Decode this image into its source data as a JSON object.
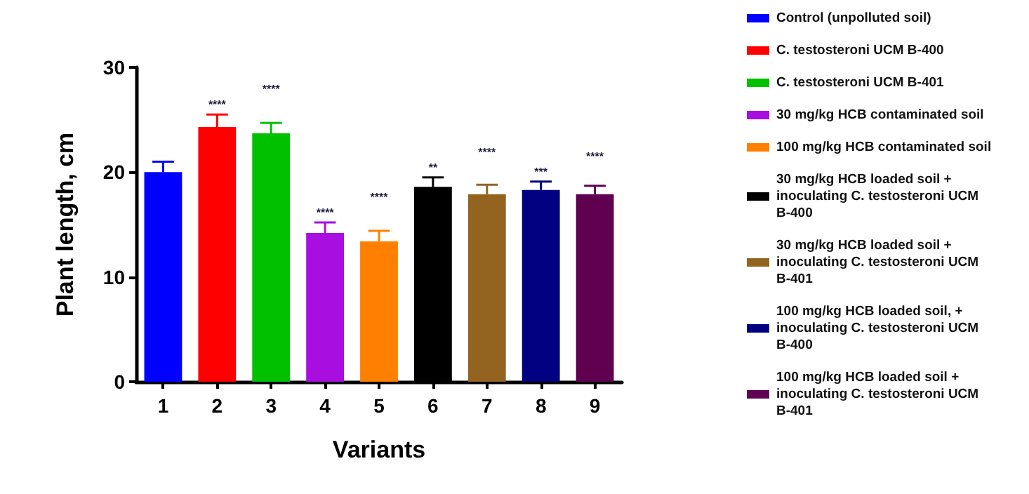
{
  "chart_data": {
    "type": "bar",
    "xlabel": "Variants",
    "ylabel": "Plant length, cm",
    "categories": [
      "1",
      "2",
      "3",
      "4",
      "5",
      "6",
      "7",
      "8",
      "9"
    ],
    "series": [
      {
        "name": "Control (unpolluted soil)",
        "color": "#0000ff",
        "values": [
          20.0,
          null,
          null,
          null,
          null,
          null,
          null,
          null,
          null
        ],
        "errors": [
          [
            20.0,
            21.0
          ],
          null,
          null,
          null,
          null,
          null,
          null,
          null,
          null
        ]
      },
      {
        "name": "C. testosteroni UCM B-400",
        "color": "#ff0000",
        "values": [
          null,
          24.3,
          null,
          null,
          null,
          null,
          null,
          null,
          null
        ],
        "errors": [
          null,
          [
            24.3,
            25.5
          ],
          null,
          null,
          null,
          null,
          null,
          null,
          null
        ]
      },
      {
        "name": "C. testosteroni UCM B-401",
        "color": "#00c000",
        "values": [
          null,
          null,
          23.7,
          null,
          null,
          null,
          null,
          null,
          null
        ],
        "errors": [
          null,
          null,
          [
            23.7,
            24.7
          ],
          null,
          null,
          null,
          null,
          null,
          null
        ]
      },
      {
        "name": "30 mg/kg HCB contaminated soil",
        "color": "#a80ee0",
        "values": [
          null,
          null,
          null,
          14.2,
          null,
          null,
          null,
          null,
          null
        ],
        "errors": [
          null,
          null,
          null,
          [
            14.2,
            15.2
          ],
          null,
          null,
          null,
          null,
          null
        ]
      },
      {
        "name": "100 mg/kg HCB contaminated soil",
        "color": "#ff8000",
        "values": [
          null,
          null,
          null,
          null,
          13.4,
          null,
          null,
          null,
          null
        ],
        "errors": [
          null,
          null,
          null,
          null,
          [
            13.4,
            14.4
          ],
          null,
          null,
          null,
          null
        ]
      },
      {
        "name": "30 mg/kg HCB loaded soil + inoculating C. testosteroni UCM B-400",
        "color": "#000000",
        "values": [
          null,
          null,
          null,
          null,
          null,
          18.6,
          null,
          null,
          null
        ],
        "errors": [
          null,
          null,
          null,
          null,
          null,
          [
            18.6,
            19.5
          ],
          null,
          null,
          null
        ]
      },
      {
        "name": "30 mg/kg HCB loaded soil + inoculating C. testosteroni UCM B-401",
        "color": "#936420",
        "values": [
          null,
          null,
          null,
          null,
          null,
          null,
          17.9,
          null,
          null
        ],
        "errors": [
          null,
          null,
          null,
          null,
          null,
          null,
          [
            17.9,
            18.8
          ],
          null,
          null
        ]
      },
      {
        "name": "100 mg/kg HCB loaded soil, + inoculating C. testosteroni UCM B-400",
        "color": "#000080",
        "values": [
          null,
          null,
          null,
          null,
          null,
          null,
          null,
          18.3,
          null
        ],
        "errors": [
          null,
          null,
          null,
          null,
          null,
          null,
          null,
          [
            18.3,
            19.1
          ],
          null
        ]
      },
      {
        "name": "100 mg/kg HCB loaded soil + inoculating C. testosteroni UCM B-401",
        "color": "#600050",
        "values": [
          null,
          null,
          null,
          null,
          null,
          null,
          null,
          null,
          17.9
        ],
        "errors": [
          null,
          null,
          null,
          null,
          null,
          null,
          null,
          null,
          [
            17.9,
            18.7
          ]
        ]
      }
    ],
    "annotations": [
      {
        "text": "****",
        "x": "2",
        "y": 25.5
      },
      {
        "text": "****",
        "x": "3",
        "y": 24.7
      },
      {
        "text": "****",
        "x": "4",
        "y": 15.2
      },
      {
        "text": "****",
        "x": "5",
        "y": 14.4
      },
      {
        "text": "**",
        "x": "6",
        "y": 19.5
      },
      {
        "text": "****",
        "x": "7",
        "y": 18.8
      },
      {
        "text": "***",
        "x": "8",
        "y": 19.1
      },
      {
        "text": "****",
        "x": "9",
        "y": 18.7
      }
    ],
    "ylim": [
      0,
      30
    ],
    "yticks": [
      0,
      10,
      20,
      30
    ],
    "grid": false,
    "legend": "right"
  }
}
